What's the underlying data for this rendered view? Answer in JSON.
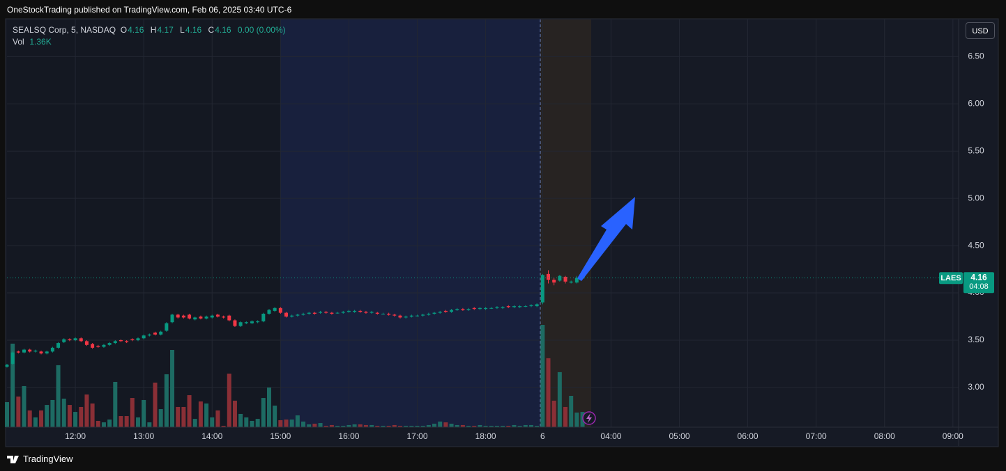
{
  "header": "OneStockTrading published on TradingView.com, Feb 06, 2025 03:40 UTC-6",
  "footer": "TradingView",
  "currency_button": "USD",
  "chart_data": {
    "type": "candlestick",
    "title": "SEALSQ Corp, 5, NASDAQ",
    "legend_labels": {
      "open": "O",
      "high": "H",
      "low": "L",
      "close": "C",
      "volume": "Vol"
    },
    "change": "0.00 (0.00%)",
    "last_volume_label": "1.36K",
    "symbol_label": "LAES",
    "countdown": "04:08",
    "up_color": "#089981",
    "down_color": "#f23645",
    "volume_colors": {
      "up": "#1d6b63",
      "down": "#8a2f36"
    },
    "grid": true,
    "x": [
      0,
      1,
      2,
      3,
      4,
      5,
      6,
      7,
      8,
      9,
      10,
      11,
      12,
      13,
      14,
      15,
      16,
      17,
      18,
      19,
      20,
      21,
      22,
      23,
      24,
      25,
      26,
      27,
      28,
      29,
      30,
      31,
      32,
      33,
      34,
      35,
      36,
      37,
      38,
      39,
      40,
      41,
      42,
      43,
      44,
      45,
      46,
      47,
      48,
      49,
      50,
      51,
      52,
      53,
      54,
      55,
      56,
      57,
      58,
      59,
      60,
      61,
      62,
      63,
      64,
      65,
      66,
      67,
      68,
      69,
      70,
      71,
      72,
      73,
      74,
      75,
      76,
      77,
      78,
      79,
      80,
      81,
      82,
      83,
      84,
      85,
      86,
      87,
      88,
      89,
      90,
      91,
      92,
      93,
      94,
      95,
      96,
      97,
      98,
      99,
      100,
      101
    ],
    "open": [
      3.22,
      3.25,
      3.38,
      3.37,
      3.4,
      3.38,
      3.38,
      3.36,
      3.38,
      3.42,
      3.48,
      3.51,
      3.5,
      3.52,
      3.49,
      3.46,
      3.44,
      3.43,
      3.45,
      3.47,
      3.5,
      3.49,
      3.51,
      3.5,
      3.52,
      3.55,
      3.58,
      3.56,
      3.6,
      3.69,
      3.77,
      3.76,
      3.77,
      3.72,
      3.75,
      3.73,
      3.74,
      3.77,
      3.75,
      3.76,
      3.71,
      3.65,
      3.68,
      3.68,
      3.69,
      3.7,
      3.78,
      3.81,
      3.84,
      3.79,
      3.75,
      3.76,
      3.77,
      3.78,
      3.79,
      3.79,
      3.8,
      3.79,
      3.79,
      3.79,
      3.8,
      3.8,
      3.81,
      3.8,
      3.79,
      3.79,
      3.78,
      3.78,
      3.77,
      3.76,
      3.74,
      3.75,
      3.76,
      3.76,
      3.77,
      3.78,
      3.79,
      3.81,
      3.8,
      3.82,
      3.83,
      3.82,
      3.84,
      3.83,
      3.83,
      3.84,
      3.84,
      3.84,
      3.86,
      3.85,
      3.85,
      3.86,
      3.86,
      3.86,
      3.9,
      4.2,
      4.14,
      4.13,
      4.17,
      4.11,
      4.11,
      4.16
    ],
    "high": [
      3.25,
      3.38,
      3.39,
      3.41,
      3.41,
      3.4,
      3.39,
      3.39,
      3.43,
      3.48,
      3.52,
      3.52,
      3.53,
      3.53,
      3.5,
      3.47,
      3.45,
      3.46,
      3.48,
      3.5,
      3.51,
      3.5,
      3.52,
      3.53,
      3.56,
      3.57,
      3.59,
      3.6,
      3.69,
      3.78,
      3.78,
      3.77,
      3.78,
      3.75,
      3.76,
      3.76,
      3.77,
      3.78,
      3.76,
      3.77,
      3.72,
      3.7,
      3.7,
      3.71,
      3.71,
      3.79,
      3.83,
      3.85,
      3.85,
      3.8,
      3.77,
      3.78,
      3.79,
      3.8,
      3.8,
      3.81,
      3.81,
      3.8,
      3.8,
      3.81,
      3.82,
      3.82,
      3.82,
      3.81,
      3.81,
      3.8,
      3.79,
      3.79,
      3.78,
      3.77,
      3.76,
      3.77,
      3.77,
      3.78,
      3.79,
      3.8,
      3.81,
      3.82,
      3.83,
      3.84,
      3.84,
      3.84,
      3.85,
      3.85,
      3.85,
      3.85,
      3.86,
      3.86,
      3.87,
      3.87,
      3.87,
      3.87,
      3.88,
      3.89,
      4.2,
      4.24,
      4.16,
      4.19,
      4.18,
      4.13,
      4.18,
      4.17
    ],
    "low": [
      3.21,
      3.24,
      3.36,
      3.36,
      3.37,
      3.37,
      3.35,
      3.35,
      3.37,
      3.41,
      3.47,
      3.49,
      3.49,
      3.48,
      3.44,
      3.41,
      3.42,
      3.42,
      3.44,
      3.46,
      3.48,
      3.47,
      3.49,
      3.49,
      3.51,
      3.54,
      3.55,
      3.55,
      3.59,
      3.68,
      3.73,
      3.73,
      3.72,
      3.71,
      3.72,
      3.72,
      3.73,
      3.74,
      3.73,
      3.7,
      3.64,
      3.64,
      3.67,
      3.67,
      3.68,
      3.69,
      3.77,
      3.8,
      3.78,
      3.74,
      3.74,
      3.75,
      3.76,
      3.77,
      3.77,
      3.78,
      3.78,
      3.77,
      3.78,
      3.78,
      3.79,
      3.79,
      3.79,
      3.78,
      3.78,
      3.77,
      3.77,
      3.76,
      3.75,
      3.73,
      3.73,
      3.74,
      3.75,
      3.75,
      3.76,
      3.77,
      3.78,
      3.79,
      3.79,
      3.81,
      3.81,
      3.81,
      3.82,
      3.82,
      3.82,
      3.83,
      3.83,
      3.83,
      3.84,
      3.84,
      3.84,
      3.85,
      3.85,
      3.85,
      3.88,
      4.1,
      4.08,
      4.12,
      4.1,
      4.1,
      4.1,
      4.16
    ],
    "close": [
      3.24,
      3.37,
      3.37,
      3.4,
      3.38,
      3.39,
      3.36,
      3.38,
      3.42,
      3.47,
      3.51,
      3.5,
      3.52,
      3.49,
      3.45,
      3.42,
      3.43,
      3.45,
      3.47,
      3.49,
      3.49,
      3.48,
      3.5,
      3.52,
      3.55,
      3.56,
      3.56,
      3.59,
      3.68,
      3.77,
      3.74,
      3.74,
      3.73,
      3.74,
      3.73,
      3.75,
      3.76,
      3.75,
      3.74,
      3.71,
      3.65,
      3.69,
      3.69,
      3.7,
      3.7,
      3.78,
      3.82,
      3.84,
      3.79,
      3.75,
      3.76,
      3.77,
      3.78,
      3.79,
      3.78,
      3.8,
      3.79,
      3.78,
      3.79,
      3.8,
      3.81,
      3.81,
      3.8,
      3.79,
      3.8,
      3.78,
      3.78,
      3.77,
      3.76,
      3.74,
      3.75,
      3.76,
      3.76,
      3.77,
      3.78,
      3.79,
      3.8,
      3.8,
      3.82,
      3.83,
      3.82,
      3.83,
      3.83,
      3.84,
      3.84,
      3.84,
      3.85,
      3.85,
      3.85,
      3.86,
      3.86,
      3.86,
      3.87,
      3.88,
      4.19,
      4.14,
      4.11,
      4.18,
      4.12,
      4.12,
      4.16,
      4.16
    ],
    "volume": [
      2230,
      7440,
      2730,
      3660,
      1490,
      870,
      1490,
      1980,
      2420,
      5520,
      2540,
      1980,
      1360,
      1800,
      2910,
      2110,
      560,
      430,
      680,
      4030,
      990,
      990,
      2600,
      870,
      2420,
      430,
      3970,
      1610,
      4710,
      6880,
      1800,
      1800,
      2850,
      740,
      2290,
      2110,
      870,
      1490,
      120,
      4770,
      2360,
      1180,
      870,
      560,
      740,
      2600,
      3530,
      1920,
      620,
      680,
      680,
      1050,
      500,
      250,
      310,
      370,
      120,
      190,
      120,
      120,
      190,
      250,
      250,
      190,
      190,
      120,
      120,
      120,
      190,
      120,
      120,
      120,
      120,
      120,
      190,
      310,
      500,
      430,
      310,
      190,
      190,
      120,
      120,
      190,
      120,
      120,
      120,
      120,
      120,
      190,
      120,
      190,
      190,
      120,
      9110,
      6140,
      2360,
      4900,
      1800,
      2790,
      1300,
      1360
    ],
    "xlim": [
      0,
      167
    ],
    "xticks": [
      {
        "value": 12,
        "label": "12:00"
      },
      {
        "value": 24,
        "label": "13:00"
      },
      {
        "value": 36,
        "label": "14:00"
      },
      {
        "value": 48,
        "label": "15:00"
      },
      {
        "value": 60,
        "label": "16:00"
      },
      {
        "value": 72,
        "label": "17:00"
      },
      {
        "value": 84,
        "label": "18:00"
      },
      {
        "value": 94,
        "label": "6"
      },
      {
        "value": 106,
        "label": "04:00"
      },
      {
        "value": 118,
        "label": "05:00"
      },
      {
        "value": 130,
        "label": "06:00"
      },
      {
        "value": 142,
        "label": "07:00"
      },
      {
        "value": 154,
        "label": "08:00"
      },
      {
        "value": 166,
        "label": "09:00"
      }
    ],
    "ylim": [
      2.58,
      6.9
    ],
    "yticks": [
      {
        "value": 3,
        "label": "3.00"
      },
      {
        "value": 3.5,
        "label": "3.50"
      },
      {
        "value": 4,
        "label": "4.00"
      },
      {
        "value": 4.5,
        "label": "4.50"
      },
      {
        "value": 5,
        "label": "5.00"
      },
      {
        "value": 5.5,
        "label": "5.50"
      },
      {
        "value": 6,
        "label": "6.00"
      },
      {
        "value": 6.5,
        "label": "6.50"
      }
    ]
  }
}
